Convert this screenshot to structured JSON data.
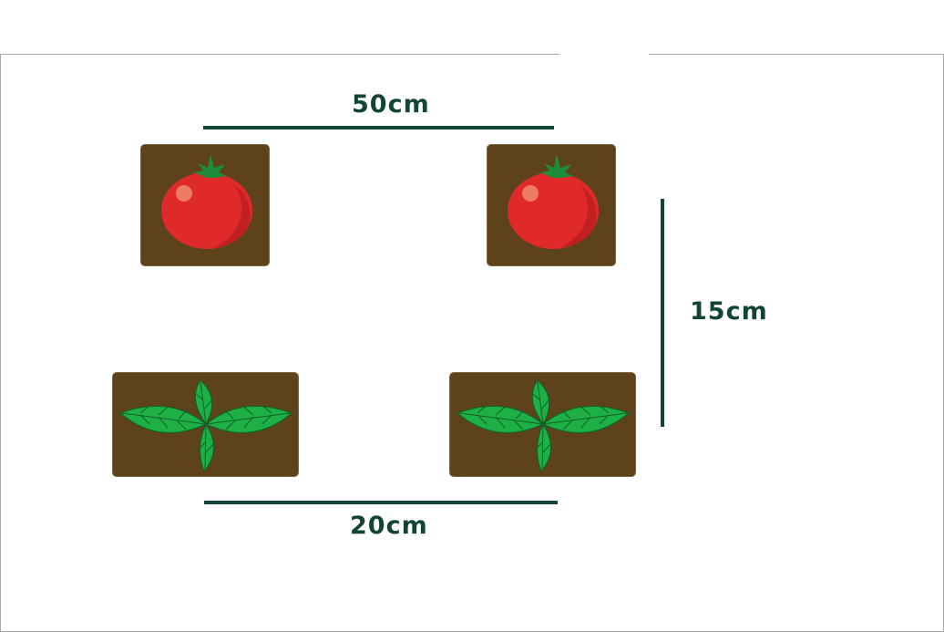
{
  "dimensions": {
    "top": "50cm",
    "bottom": "20cm",
    "side": "15cm"
  },
  "plants": [
    {
      "kind": "tomato-icon"
    },
    {
      "kind": "tomato-icon"
    },
    {
      "kind": "seedling-icon"
    },
    {
      "kind": "seedling-icon"
    }
  ],
  "colors": {
    "soil": "#5e421c",
    "dimension": "#124537",
    "tomato": "#e02a2a",
    "leaf": "#1db045"
  }
}
